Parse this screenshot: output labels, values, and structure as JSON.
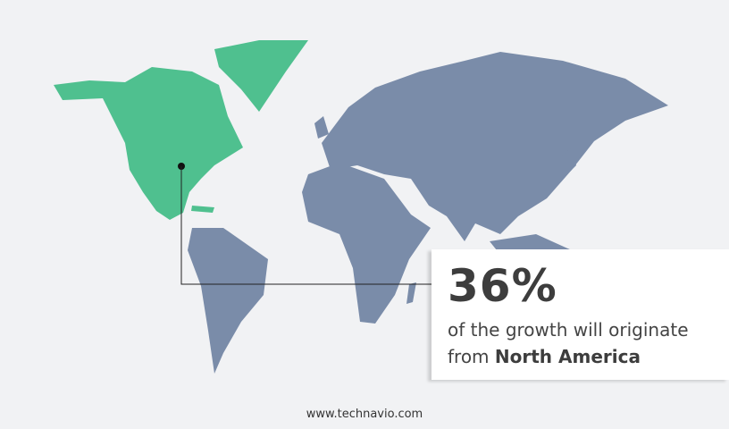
{
  "colors": {
    "highlight": "#4fc08f",
    "land": "#7a8ca9",
    "background": "#f1f2f4"
  },
  "highlighted_region": "North America",
  "callout": {
    "value": "36%",
    "line1": "of the growth will originate",
    "line2_prefix": "from ",
    "line2_region": "North America"
  },
  "footer": "www.technavio.com"
}
